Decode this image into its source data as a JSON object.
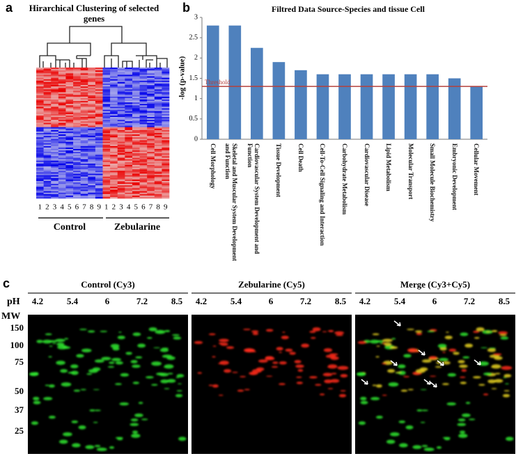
{
  "chart_data": {
    "type": "bar",
    "panel_letter": "b",
    "title": "Filtred Data Source-Species and tissue Cell",
    "y_label": "-log (p-value)",
    "categories": [
      "Cell Morphology",
      "Skeletal and Muscular System Development and Function",
      "Cardiovascular System Development and Function",
      "Tissue Development",
      "Cell Death",
      "Cell-To-Cell Signaling and Interaction",
      "Carbohydrate Metabolism",
      "Cardiovascular Disease",
      "Lipid Metabolism",
      "Molecular Transport",
      "Small Molecule Biochemistry",
      "Embryonic Development",
      "Cellular Movement"
    ],
    "values": [
      2.8,
      2.8,
      2.25,
      1.9,
      1.7,
      1.6,
      1.6,
      1.6,
      1.6,
      1.6,
      1.6,
      1.5,
      1.3
    ],
    "color": "#4f81bd",
    "ylim": [
      0,
      3
    ],
    "yticks": [
      0,
      0.5,
      1,
      1.5,
      2,
      2.5,
      3
    ],
    "threshold": {
      "value": 1.3,
      "label": "Threshold",
      "color": "#b5403c"
    }
  },
  "panel_a": {
    "letter": "a",
    "title": "Hirarchical Clustering of selected genes",
    "lanes": [
      "1",
      "2",
      "3",
      "4",
      "5",
      "6",
      "7",
      "8",
      "9"
    ],
    "groups": [
      "Control",
      "Zebularine"
    ]
  },
  "panel_c": {
    "letter": "c",
    "titles": [
      "Control (Cy3)",
      "Zebularine (Cy5)",
      "Merge (Cy3+Cy5)"
    ],
    "ph_label": "pH",
    "ph_ticks": [
      "4.2",
      "5.4",
      "6",
      "7.2",
      "8.5"
    ],
    "mw_label": "MW",
    "mw_ticks": [
      "150",
      "100",
      "75",
      "50",
      "37",
      "25"
    ]
  }
}
